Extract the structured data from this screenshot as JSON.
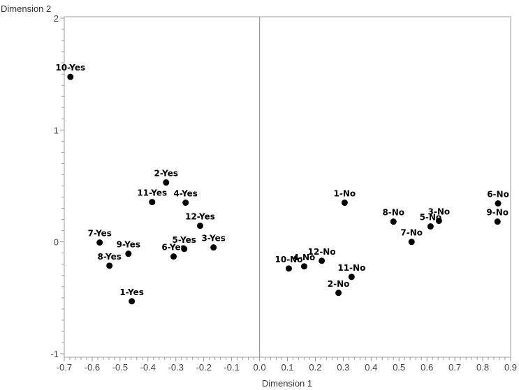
{
  "chart_data": {
    "type": "scatter",
    "title": "",
    "xlabel": "Dimension 1",
    "ylabel": "Dimension 2",
    "xlim": [
      -0.7,
      0.9
    ],
    "ylim": [
      -1,
      2
    ],
    "x_ticks": [
      "-0.7",
      "-0.6",
      "-0.5",
      "-0.4",
      "-0.3",
      "-0.2",
      "-0.1",
      "0.0",
      "0.1",
      "0.2",
      "0.3",
      "0.4",
      "0.5",
      "0.6",
      "0.7",
      "0.8",
      "0.9"
    ],
    "y_ticks": [
      "-1",
      "0",
      "1",
      "2"
    ],
    "grid": false,
    "reference_line": {
      "x": 0.0
    },
    "legend": null,
    "points": [
      {
        "label": "10-Yes",
        "x": -0.678,
        "y": 1.475
      },
      {
        "label": "2-Yes",
        "x": -0.335,
        "y": 0.531
      },
      {
        "label": "11-Yes",
        "x": -0.385,
        "y": 0.356
      },
      {
        "label": "4-Yes",
        "x": -0.265,
        "y": 0.35
      },
      {
        "label": "12-Yes",
        "x": -0.213,
        "y": 0.144
      },
      {
        "label": "7-Yes",
        "x": -0.573,
        "y": -0.006
      },
      {
        "label": "9-Yes",
        "x": -0.47,
        "y": -0.106
      },
      {
        "label": "8-Yes",
        "x": -0.538,
        "y": -0.213
      },
      {
        "label": "5-Yes",
        "x": -0.27,
        "y": -0.063
      },
      {
        "label": "6-Yes",
        "x": -0.308,
        "y": -0.131
      },
      {
        "label": "3-Yes",
        "x": -0.165,
        "y": -0.05
      },
      {
        "label": "1-Yes",
        "x": -0.458,
        "y": -0.531
      },
      {
        "label": "1-No",
        "x": 0.305,
        "y": 0.35
      },
      {
        "label": "8-No",
        "x": 0.48,
        "y": 0.181
      },
      {
        "label": "3-No",
        "x": 0.643,
        "y": 0.188
      },
      {
        "label": "5-No",
        "x": 0.613,
        "y": 0.138
      },
      {
        "label": "7-No",
        "x": 0.545,
        "y": 0.0
      },
      {
        "label": "6-No",
        "x": 0.855,
        "y": 0.344
      },
      {
        "label": "9-No",
        "x": 0.853,
        "y": 0.181
      },
      {
        "label": "10-No",
        "x": 0.105,
        "y": -0.238
      },
      {
        "label": "4-No",
        "x": 0.16,
        "y": -0.219
      },
      {
        "label": "12-No",
        "x": 0.223,
        "y": -0.169
      },
      {
        "label": "11-No",
        "x": 0.33,
        "y": -0.313
      },
      {
        "label": "2-No",
        "x": 0.283,
        "y": -0.456
      }
    ]
  },
  "style": {
    "frame_color": "#bdbdbd",
    "axis_color": "#9a9a9a",
    "point_color": "#000000"
  }
}
